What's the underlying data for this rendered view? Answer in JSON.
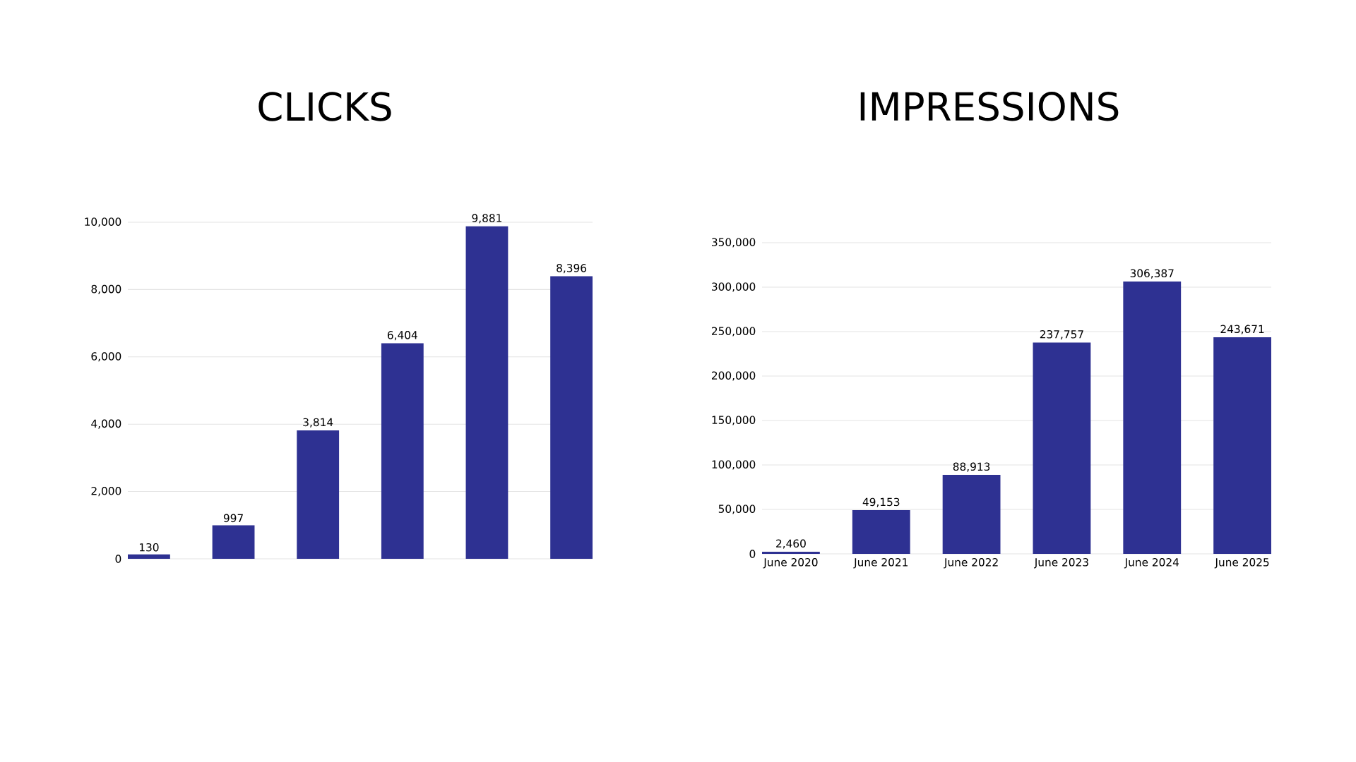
{
  "chart_data": [
    {
      "type": "bar",
      "title": "CLICKS",
      "categories": [
        null,
        null,
        null,
        null,
        null,
        null
      ],
      "values": [
        130,
        997,
        3814,
        6404,
        9881,
        8396
      ],
      "value_labels": [
        "130",
        "997",
        "3,814",
        "6,404",
        "9,881",
        "8,396"
      ],
      "color": "#2e3192",
      "ylim": [
        0,
        10000
      ],
      "yticks": [
        0,
        {
          "value": 2000,
          "label": "2,000"
        },
        {
          "value": 4000,
          "label": "4,000"
        },
        {
          "value": 6000,
          "label": "6,000"
        },
        {
          "value": 8000,
          "label": "8,000"
        },
        {
          "value": 10000,
          "label": "10,000"
        }
      ],
      "grid": "y"
    },
    {
      "type": "bar",
      "title": "IMPRESSIONS",
      "categories": [
        "June 2020",
        "June 2021",
        "June 2022",
        "June 2023",
        "June 2024",
        "June 2025"
      ],
      "values": [
        2460,
        49153,
        88913,
        237757,
        306387,
        243671
      ],
      "value_labels": [
        "2,460",
        "49,153",
        "88,913",
        "237,757",
        "306,387",
        "243,671"
      ],
      "color": "#2e3192",
      "ylim": [
        0,
        350000
      ],
      "yticks": [
        0,
        {
          "value": 50000,
          "label": "50,000"
        },
        {
          "value": 100000,
          "label": "100,000"
        },
        {
          "value": 150000,
          "label": "150,000"
        },
        {
          "value": 200000,
          "label": "200,000"
        },
        {
          "value": 250000,
          "label": "250,000"
        },
        {
          "value": 300000,
          "label": "300,000"
        },
        {
          "value": 350000,
          "label": "350,000"
        }
      ],
      "grid": "y"
    }
  ]
}
